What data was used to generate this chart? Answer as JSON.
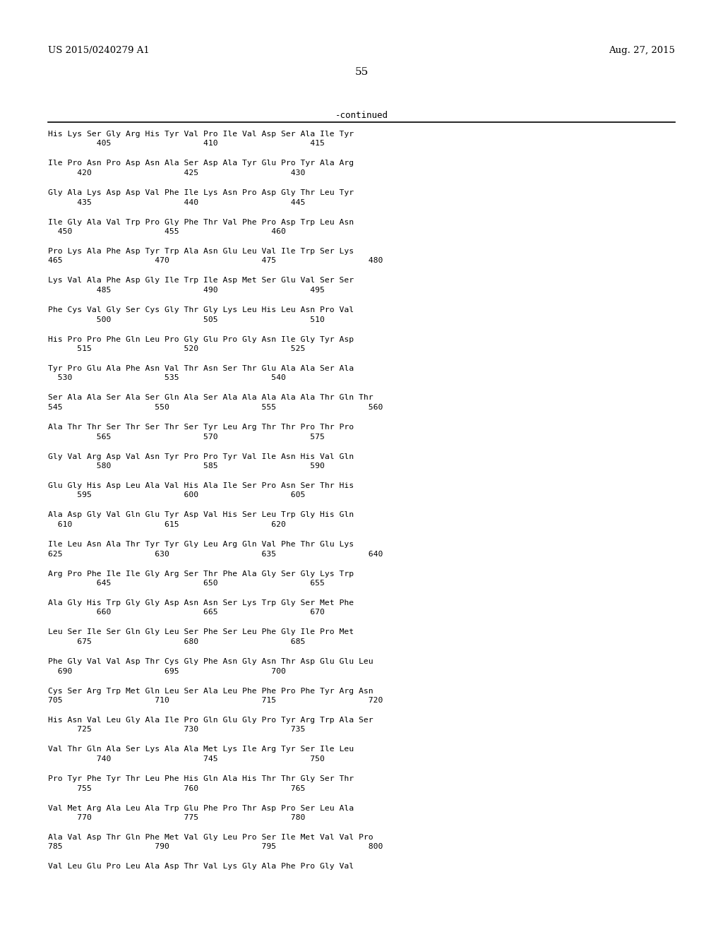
{
  "header_left": "US 2015/0240279 A1",
  "header_right": "Aug. 27, 2015",
  "page_number": "55",
  "continued_label": "-continued",
  "background_color": "#ffffff",
  "text_color": "#000000",
  "seq_entries": [
    [
      "His Lys Ser Gly Arg His Tyr Val Pro Ile Val Asp Ser Ala Ile Tyr",
      "          405                   410                   415"
    ],
    [
      "Ile Pro Asn Pro Asp Asn Ala Ser Asp Ala Tyr Glu Pro Tyr Ala Arg",
      "      420                   425                   430"
    ],
    [
      "Gly Ala Lys Asp Asp Val Phe Ile Lys Asn Pro Asp Gly Thr Leu Tyr",
      "      435                   440                   445"
    ],
    [
      "Ile Gly Ala Val Trp Pro Gly Phe Thr Val Phe Pro Asp Trp Leu Asn",
      "  450                   455                   460"
    ],
    [
      "Pro Lys Ala Phe Asp Tyr Trp Ala Asn Glu Leu Val Ile Trp Ser Lys",
      "465                   470                   475                   480"
    ],
    [
      "Lys Val Ala Phe Asp Gly Ile Trp Ile Asp Met Ser Glu Val Ser Ser",
      "          485                   490                   495"
    ],
    [
      "Phe Cys Val Gly Ser Cys Gly Thr Gly Lys Leu His Leu Asn Pro Val",
      "          500                   505                   510"
    ],
    [
      "His Pro Pro Phe Gln Leu Pro Gly Glu Pro Gly Asn Ile Gly Tyr Asp",
      "      515                   520                   525"
    ],
    [
      "Tyr Pro Glu Ala Phe Asn Val Thr Asn Ser Thr Glu Ala Ala Ser Ala",
      "  530                   535                   540"
    ],
    [
      "Ser Ala Ala Ser Ala Ser Gln Ala Ser Ala Ala Ala Ala Ala Thr Gln Thr",
      "545                   550                   555                   560"
    ],
    [
      "Ala Thr Thr Ser Thr Ser Thr Ser Tyr Leu Arg Thr Thr Pro Thr Pro",
      "          565                   570                   575"
    ],
    [
      "Gly Val Arg Asp Val Asn Tyr Pro Pro Tyr Val Ile Asn His Val Gln",
      "          580                   585                   590"
    ],
    [
      "Glu Gly His Asp Leu Ala Val His Ala Ile Ser Pro Asn Ser Thr His",
      "      595                   600                   605"
    ],
    [
      "Ala Asp Gly Val Gln Glu Tyr Asp Val His Ser Leu Trp Gly His Gln",
      "  610                   615                   620"
    ],
    [
      "Ile Leu Asn Ala Thr Tyr Tyr Gly Leu Arg Gln Val Phe Thr Glu Lys",
      "625                   630                   635                   640"
    ],
    [
      "Arg Pro Phe Ile Ile Gly Arg Ser Thr Phe Ala Gly Ser Gly Lys Trp",
      "          645                   650                   655"
    ],
    [
      "Ala Gly His Trp Gly Gly Asp Asn Asn Ser Lys Trp Gly Ser Met Phe",
      "          660                   665                   670"
    ],
    [
      "Leu Ser Ile Ser Gln Gly Leu Ser Phe Ser Leu Phe Gly Ile Pro Met",
      "      675                   680                   685"
    ],
    [
      "Phe Gly Val Val Asp Thr Cys Gly Phe Asn Gly Asn Thr Asp Glu Glu Leu",
      "  690                   695                   700"
    ],
    [
      "Cys Ser Arg Trp Met Gln Leu Ser Ala Leu Phe Phe Pro Phe Tyr Arg Asn",
      "705                   710                   715                   720"
    ],
    [
      "His Asn Val Leu Gly Ala Ile Pro Gln Glu Gly Pro Tyr Arg Trp Ala Ser",
      "      725                   730                   735"
    ],
    [
      "Val Thr Gln Ala Ser Lys Ala Ala Met Lys Ile Arg Tyr Ser Ile Leu",
      "          740                   745                   750"
    ],
    [
      "Pro Tyr Phe Tyr Thr Leu Phe His Gln Ala His Thr Thr Gly Ser Thr",
      "      755                   760                   765"
    ],
    [
      "Val Met Arg Ala Leu Ala Trp Glu Phe Pro Thr Asp Pro Ser Leu Ala",
      "      770                   775                   780"
    ],
    [
      "Ala Val Asp Thr Gln Phe Met Val Gly Leu Pro Ser Ile Met Val Val Pro",
      "785                   790                   795                   800"
    ],
    [
      "Val Leu Glu Pro Leu Ala Asp Thr Val Lys Gly Ala Phe Pro Gly Val",
      ""
    ]
  ]
}
